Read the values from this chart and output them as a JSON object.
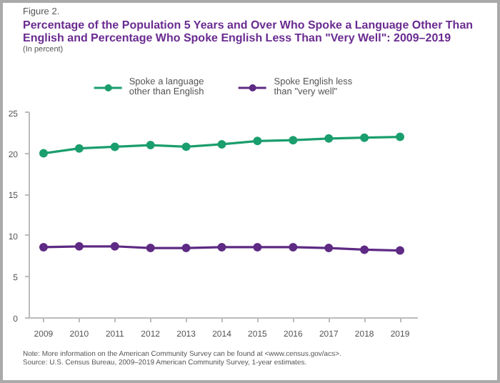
{
  "chart_data": {
    "type": "line",
    "title": "Percentage of the Population 5 Years and Over Who Spoke a Language Other Than English and Percentage Who Spoke English Less Than \"Very Well\": 2009–2019",
    "subtitle": "(In percent)",
    "x": [
      2009,
      2010,
      2011,
      2012,
      2013,
      2014,
      2015,
      2016,
      2017,
      2018,
      2019
    ],
    "series": [
      {
        "name": "Spoke a language other than English",
        "color": "#1a9e6e",
        "values": [
          20.0,
          20.6,
          20.8,
          21.0,
          20.8,
          21.1,
          21.5,
          21.6,
          21.8,
          21.9,
          22.0
        ]
      },
      {
        "name": "Spoke English less than \"very well\"",
        "color": "#5e2a84",
        "values": [
          8.6,
          8.7,
          8.7,
          8.5,
          8.5,
          8.6,
          8.6,
          8.6,
          8.5,
          8.3,
          8.2
        ]
      }
    ],
    "xlim": [
      2008.6,
      2019.5
    ],
    "xticks": [
      2009,
      2010,
      2011,
      2012,
      2013,
      2014,
      2015,
      2016,
      2017,
      2018,
      2019
    ],
    "ylim": [
      0,
      25
    ],
    "yticks": [
      0,
      5,
      10,
      15,
      20,
      25
    ],
    "grid": false,
    "legend": "top",
    "marker": "circle",
    "line_style": "solid",
    "annotations": [
      "Figure 2.",
      "Note: More information on the American Community Survey can be found at <www.census.gov/acs>.",
      "Source: U.S. Census Bureau, 2009–2019 American Community Survey, 1-year estimates."
    ]
  }
}
